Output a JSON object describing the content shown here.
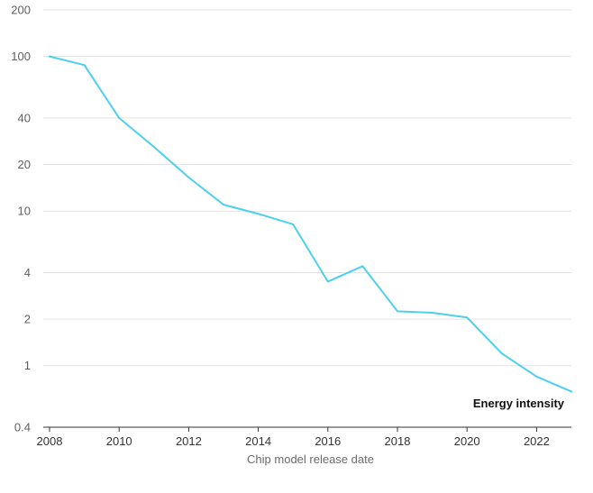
{
  "chart_data": {
    "type": "line",
    "title": "",
    "xlabel": "Chip model release date",
    "ylabel": "",
    "yscale": "log",
    "xlim": [
      2008,
      2023
    ],
    "ylim": [
      0.4,
      200
    ],
    "grid": true,
    "y_ticks": [
      0.4,
      1,
      2,
      4,
      10,
      20,
      40,
      100,
      200
    ],
    "y_tick_labels": [
      "0.4",
      "1",
      "2",
      "4",
      "10",
      "20",
      "40",
      "100",
      "200"
    ],
    "x_ticks": [
      2008,
      2010,
      2012,
      2014,
      2016,
      2018,
      2020,
      2022
    ],
    "x_tick_labels": [
      "2008",
      "2010",
      "2012",
      "2014",
      "2016",
      "2018",
      "2020",
      "2022"
    ],
    "colors": {
      "line": "#4dcff0",
      "grid": "#e3e3e3",
      "axis": "#333333"
    },
    "series": [
      {
        "name": "Energy intensity",
        "label_placement": "bottom-right",
        "x": [
          2008,
          2009,
          2010,
          2011,
          2012,
          2013,
          2014,
          2015,
          2016,
          2017,
          2018,
          2019,
          2020,
          2021,
          2022,
          2023
        ],
        "values": [
          100,
          88,
          40,
          26,
          16.5,
          11,
          9.6,
          8.2,
          3.5,
          4.4,
          2.25,
          2.2,
          2.05,
          1.2,
          0.85,
          0.68
        ]
      }
    ]
  }
}
